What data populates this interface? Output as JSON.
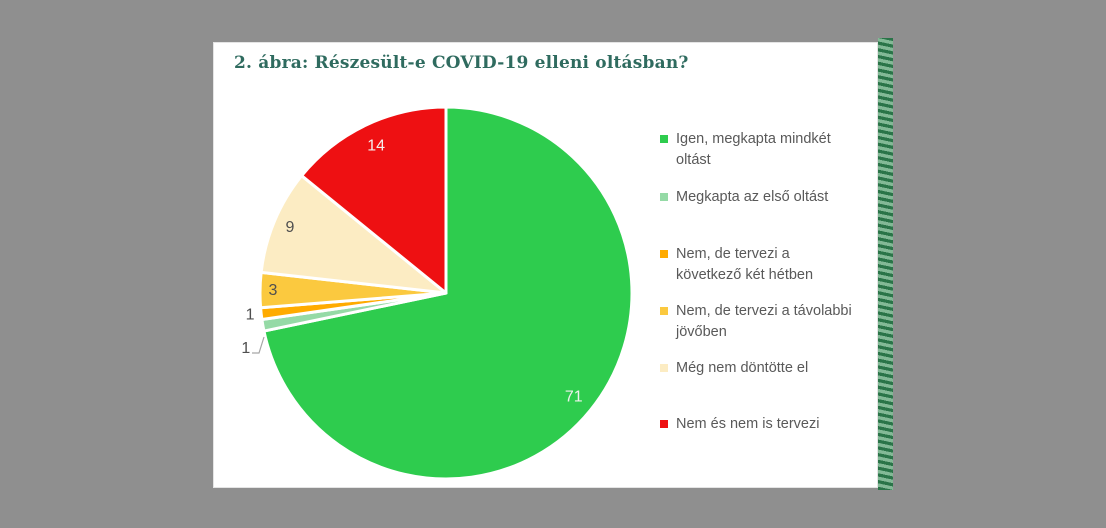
{
  "page": {
    "background": "#8f8f8f"
  },
  "title": "2. ábra: Részesült-e COVID-19 elleni oltásban?",
  "title_color": "#2f6b5f",
  "chart_data": {
    "type": "pie",
    "title": "2. ábra: Részesült-e COVID-19 elleni oltásban?",
    "start_angle_deg": 0,
    "direction": "clockwise",
    "legend_position": "right",
    "slices": [
      {
        "label": "Igen, megkapta mindkét oltást",
        "value": 71,
        "color": "#2ecc4e",
        "label_color": "#eef2ec",
        "label_placement": "inside"
      },
      {
        "label": "Megkapta az első oltást",
        "value": 1,
        "color": "#95daa6",
        "label_color": "#4f4f4f",
        "label_placement": "outside-leader"
      },
      {
        "label": "Nem, de tervezi a következő két hétben",
        "value": 1,
        "color": "#ffab00",
        "label_color": "#4f4f4f",
        "label_placement": "outside"
      },
      {
        "label": "Nem, de tervezi a távolabbi jövőben",
        "value": 3,
        "color": "#fbc93f",
        "label_color": "#4f4f4f",
        "label_placement": "inside"
      },
      {
        "label": "Még nem döntötte el",
        "value": 9,
        "color": "#fcecc3",
        "label_color": "#4f4f4f",
        "label_placement": "inside"
      },
      {
        "label": "Nem és nem is tervezi",
        "value": 14,
        "color": "#ee1012",
        "label_color": "#f5efed",
        "label_placement": "inside"
      }
    ]
  },
  "legend": {
    "items": [
      {
        "label": "Igen, megkapta mindkét\noltást"
      },
      {
        "label": "Megkapta az első oltást"
      },
      {
        "label": "Nem, de tervezi a\nkövetkező két hétben"
      },
      {
        "label": "Nem, de tervezi a távolabbi\njövőben"
      },
      {
        "label": "Még nem döntötte el"
      },
      {
        "label": "Nem és nem is tervezi"
      }
    ]
  },
  "decor": {
    "strip_dark": "#2a7448",
    "strip_light": "#83b996"
  }
}
